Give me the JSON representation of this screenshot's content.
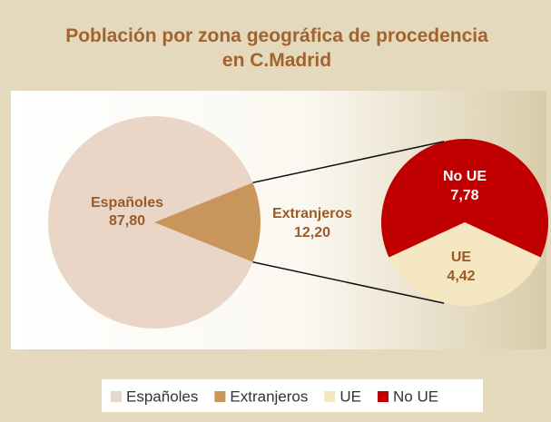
{
  "chart_data": {
    "type": "pie-of-pie",
    "title": "Población por zona geográfica de procedencia en C.Madrid",
    "categories": [
      "Españoles",
      "Extranjeros"
    ],
    "values": [
      87.8,
      12.2
    ],
    "value_labels": [
      "87,80",
      "12,20"
    ],
    "colors": [
      "#e9d6c6",
      "#c8955a"
    ],
    "detail": {
      "categories": [
        "No UE",
        "UE"
      ],
      "values": [
        7.78,
        4.42
      ],
      "value_labels": [
        "7,78",
        "4,42"
      ],
      "colors": [
        "#c00000",
        "#f6e7c3"
      ]
    },
    "legend": "bottom"
  }
}
